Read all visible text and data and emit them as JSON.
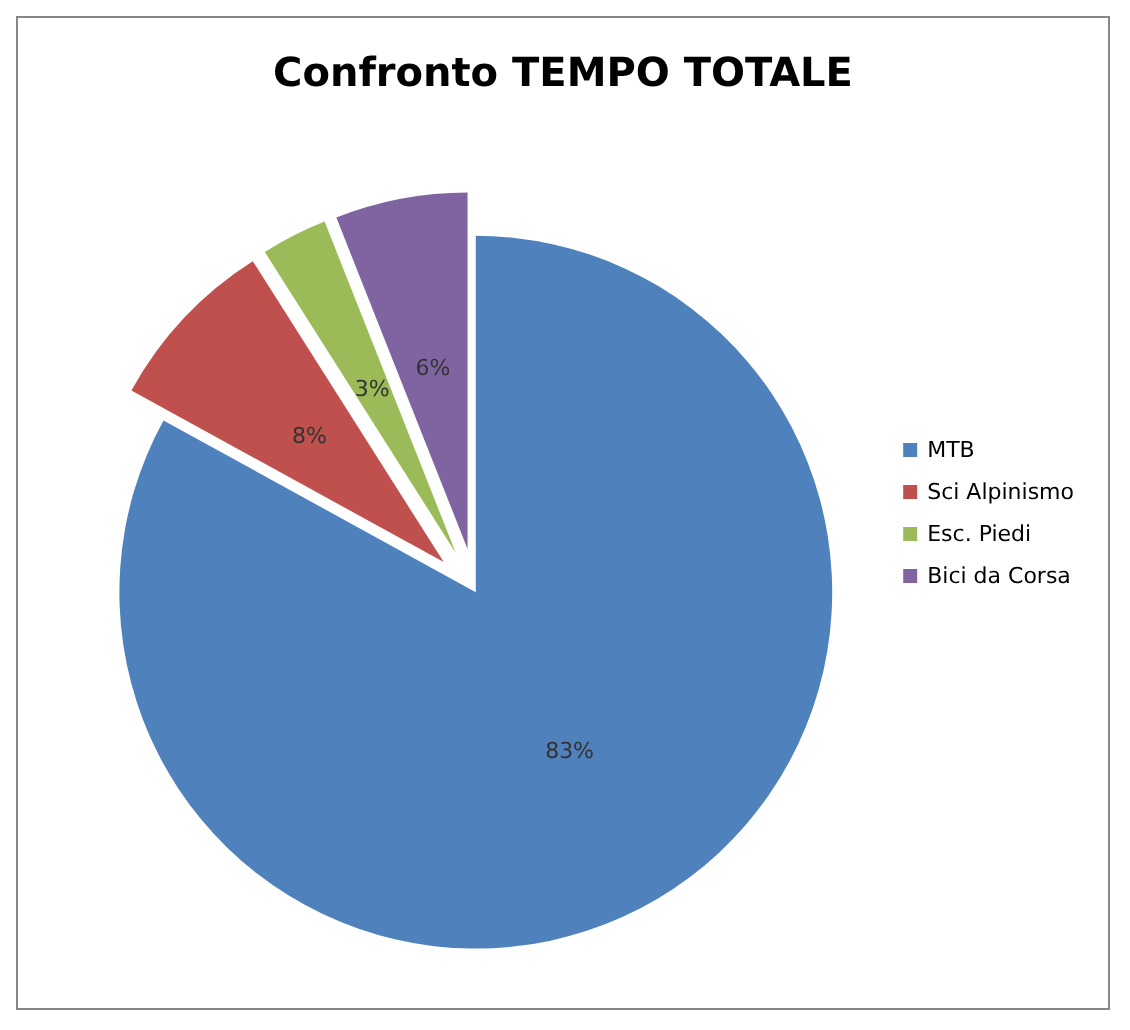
{
  "chart_data": {
    "type": "pie",
    "title": "Confronto TEMPO TOTALE",
    "categories": [
      "MTB",
      "Sci Alpinismo",
      "Esc. Piedi",
      "Bici da Corsa"
    ],
    "values": [
      83,
      8,
      3,
      6
    ],
    "colors": [
      "#4f81bd",
      "#c0504d",
      "#9bbb59",
      "#8064a2"
    ],
    "value_labels": [
      "83%",
      "8%",
      "3%",
      "6%"
    ],
    "legend": "right"
  }
}
